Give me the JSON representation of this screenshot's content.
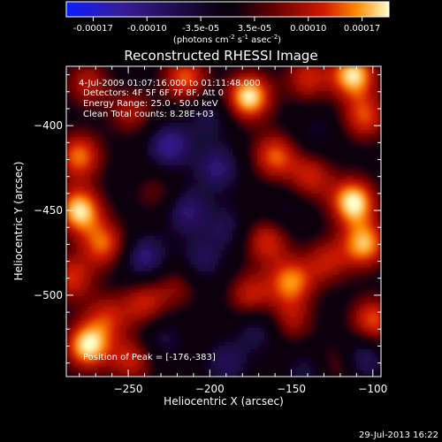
{
  "colors": {
    "background": "#000000",
    "text": "#ffffff",
    "colormap": [
      "#0a1eff",
      "#3a1c9a",
      "#0b0010",
      "#6a0000",
      "#d21a00",
      "#ff8a00",
      "#ffffc8"
    ]
  },
  "colorbar": {
    "ticks": [
      "-0.00017",
      "-0.00010",
      "-3.5e-05",
      "3.5e-05",
      "0.00010",
      "0.00017"
    ],
    "unit_main": "(photons cm",
    "unit_exp1": "-2",
    "unit_mid": " s",
    "unit_exp2": "-1",
    "unit_end": " asec",
    "unit_exp3": "-2",
    "unit_close": ")"
  },
  "annotations": {
    "time_range": "4-Jul-2009 01:07:16.000 to 01:11:48.000",
    "detectors": "Detectors: 4F 5F 6F 7F 8F, Att 0",
    "energy": "Energy Range: 25.0 - 50.0 keV",
    "clean": "Clean     Total counts: 8.28E+03",
    "peak": "Position of Peak = [-176,-383]"
  },
  "timestamp": "29-Jul-2013 16:22",
  "chart_data": {
    "type": "heatmap",
    "title": "Reconstructed RHESSI Image",
    "xlabel": "Heliocentric X (arcsec)",
    "ylabel": "Heliocentric Y (arcsec)",
    "xlim": [
      -288,
      -95
    ],
    "ylim": [
      -548,
      -365
    ],
    "x_ticks": [
      -250,
      -200,
      -150,
      -100
    ],
    "y_ticks": [
      -400,
      -450,
      -500
    ],
    "x_tick_labels": [
      "−250",
      "−200",
      "−150",
      "−100"
    ],
    "y_tick_labels": [
      "−400",
      "−450",
      "−500"
    ],
    "value_range": [
      -0.00017,
      0.00017
    ],
    "peak": {
      "x": -176,
      "y": -383
    },
    "blobs": [
      {
        "x": -176,
        "y": -383,
        "v": 1.0
      },
      {
        "x": -112,
        "y": -370,
        "v": 0.95
      },
      {
        "x": -215,
        "y": -372,
        "v": 0.7
      },
      {
        "x": -140,
        "y": -372,
        "v": 0.55
      },
      {
        "x": -105,
        "y": -395,
        "v": 0.65
      },
      {
        "x": -275,
        "y": -375,
        "v": 0.5
      },
      {
        "x": -248,
        "y": -392,
        "v": 0.45
      },
      {
        "x": -280,
        "y": -418,
        "v": 0.75
      },
      {
        "x": -280,
        "y": -450,
        "v": 0.95
      },
      {
        "x": -265,
        "y": -470,
        "v": 0.7
      },
      {
        "x": -285,
        "y": -490,
        "v": 0.6
      },
      {
        "x": -240,
        "y": -505,
        "v": 0.55
      },
      {
        "x": -263,
        "y": -513,
        "v": 0.5
      },
      {
        "x": -275,
        "y": -530,
        "v": 0.95
      },
      {
        "x": -248,
        "y": -538,
        "v": 0.55
      },
      {
        "x": -220,
        "y": -495,
        "v": 0.35
      },
      {
        "x": -160,
        "y": -418,
        "v": 0.7
      },
      {
        "x": -138,
        "y": -430,
        "v": 0.55
      },
      {
        "x": -112,
        "y": -445,
        "v": 1.0
      },
      {
        "x": -105,
        "y": -470,
        "v": 0.85
      },
      {
        "x": -165,
        "y": -468,
        "v": 0.6
      },
      {
        "x": -150,
        "y": -492,
        "v": 0.75
      },
      {
        "x": -175,
        "y": -500,
        "v": 0.55
      },
      {
        "x": -128,
        "y": -480,
        "v": 0.5
      },
      {
        "x": -150,
        "y": -515,
        "v": 0.45
      },
      {
        "x": -100,
        "y": -515,
        "v": 0.7
      },
      {
        "x": -120,
        "y": -540,
        "v": 0.45
      },
      {
        "x": -232,
        "y": -440,
        "v": 0.3
      },
      {
        "x": -200,
        "y": -395,
        "v": -0.3
      },
      {
        "x": -225,
        "y": -412,
        "v": -0.55
      },
      {
        "x": -195,
        "y": -425,
        "v": -0.45
      },
      {
        "x": -215,
        "y": -450,
        "v": -0.45
      },
      {
        "x": -240,
        "y": -478,
        "v": -0.5
      },
      {
        "x": -205,
        "y": -480,
        "v": -0.35
      },
      {
        "x": -190,
        "y": -460,
        "v": -0.3
      },
      {
        "x": -170,
        "y": -520,
        "v": -0.35
      },
      {
        "x": -190,
        "y": -540,
        "v": -0.35
      },
      {
        "x": -140,
        "y": -545,
        "v": -0.3
      },
      {
        "x": -108,
        "y": -537,
        "v": -0.55
      },
      {
        "x": -230,
        "y": -525,
        "v": -0.3
      },
      {
        "x": -155,
        "y": -450,
        "v": -0.2
      },
      {
        "x": -135,
        "y": -405,
        "v": -0.2
      }
    ]
  }
}
